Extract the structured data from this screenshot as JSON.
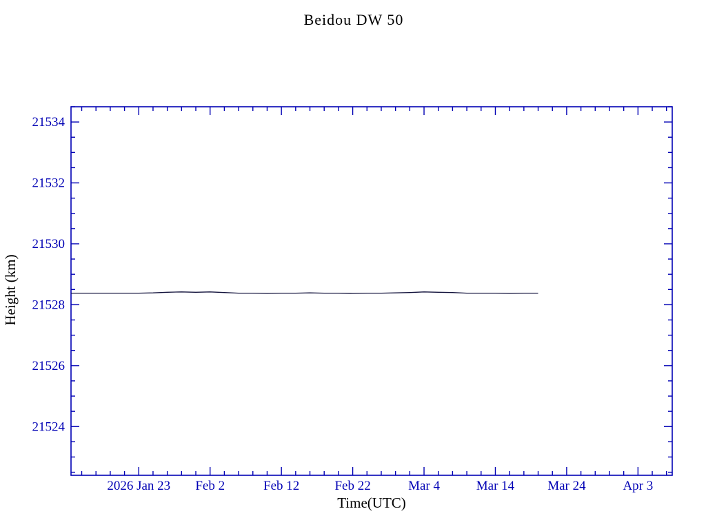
{
  "chart_data": {
    "type": "line",
    "title": "Beidou DW 50",
    "xlabel": "Time(UTC)",
    "ylabel": "Height (km)",
    "x_axis": {
      "tick_days": [
        0,
        10,
        20,
        30,
        40,
        50,
        60,
        70
      ],
      "tick_labels": [
        "2026 Jan 23",
        "Feb 2",
        "Feb 12",
        "Feb 22",
        "Mar 4",
        "Mar 14",
        "Mar 24",
        "Apr 3"
      ],
      "minor_step_days": 2,
      "xlim_days": [
        -9.5,
        74.8
      ]
    },
    "y_axis": {
      "ticks": [
        21524,
        21526,
        21528,
        21530,
        21532,
        21534
      ],
      "minor_step": 0.5,
      "ylim": [
        21522.4,
        21534.5
      ]
    },
    "series": [
      {
        "name": "height-km",
        "x_days": [
          -9.5,
          -8,
          -6,
          -4,
          -2,
          0,
          2,
          4,
          6,
          8,
          10,
          12,
          14,
          16,
          18,
          20,
          22,
          24,
          26,
          28,
          30,
          32,
          34,
          36,
          38,
          40,
          42,
          44,
          46,
          48,
          50,
          52,
          54,
          56
        ],
        "values": [
          21528.38,
          21528.38,
          21528.38,
          21528.38,
          21528.38,
          21528.38,
          21528.39,
          21528.41,
          21528.42,
          21528.41,
          21528.42,
          21528.4,
          21528.38,
          21528.38,
          21528.37,
          21528.38,
          21528.38,
          21528.39,
          21528.38,
          21528.38,
          21528.37,
          21528.38,
          21528.38,
          21528.39,
          21528.4,
          21528.42,
          21528.41,
          21528.4,
          21528.38,
          21528.38,
          21528.38,
          21528.37,
          21528.38,
          21528.38
        ]
      }
    ],
    "colors": {
      "axis": "#0000b4",
      "text": "#0000b4",
      "line": "#10103a",
      "background": "#ffffff"
    },
    "legend": "none",
    "grid": false
  }
}
